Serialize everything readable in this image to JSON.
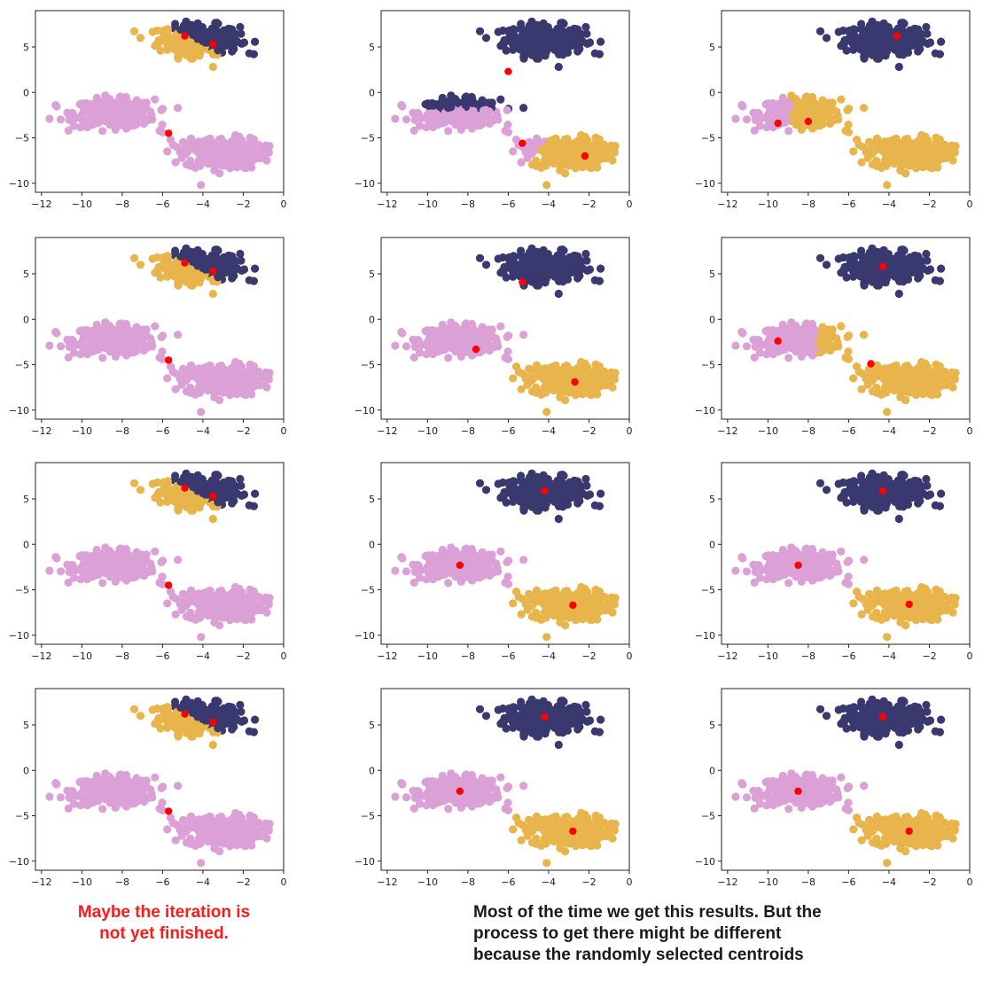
{
  "colors": {
    "navy": "#39386f",
    "pink": "#dba0d6",
    "gold": "#e8b44c",
    "centroid": "#ff0000",
    "caption_left": "#ff1a1a"
  },
  "axes": {
    "xticks": [
      -12,
      -10,
      -8,
      -6,
      -4,
      -2,
      0
    ],
    "yticks": [
      5,
      0,
      -5,
      -10
    ],
    "xlim": [
      -12.3,
      0
    ],
    "ylim": [
      -11,
      9
    ]
  },
  "chart_data": [
    {
      "type": "scatter",
      "column": 1,
      "row": 1,
      "assignment": "A",
      "centroids": [
        {
          "x": -4.9,
          "y": 6.2
        },
        {
          "x": -3.5,
          "y": 5.3
        },
        {
          "x": -5.7,
          "y": -4.5
        }
      ]
    },
    {
      "type": "scatter",
      "column": 2,
      "row": 1,
      "assignment": "B",
      "centroids": [
        {
          "x": -6.0,
          "y": 2.3
        },
        {
          "x": -5.3,
          "y": -5.6
        },
        {
          "x": -2.2,
          "y": -7.0
        }
      ]
    },
    {
      "type": "scatter",
      "column": 3,
      "row": 1,
      "assignment": "C",
      "centroids": [
        {
          "x": -3.6,
          "y": 6.2
        },
        {
          "x": -9.5,
          "y": -3.4
        },
        {
          "x": -8.0,
          "y": -3.2
        }
      ]
    },
    {
      "type": "scatter",
      "column": 1,
      "row": 2,
      "assignment": "A",
      "centroids": [
        {
          "x": -4.9,
          "y": 6.2
        },
        {
          "x": -3.5,
          "y": 5.3
        },
        {
          "x": -5.7,
          "y": -4.5
        }
      ]
    },
    {
      "type": "scatter",
      "column": 2,
      "row": 2,
      "assignment": "D",
      "centroids": [
        {
          "x": -5.3,
          "y": 4.1
        },
        {
          "x": -7.6,
          "y": -3.3
        },
        {
          "x": -2.7,
          "y": -6.9
        }
      ]
    },
    {
      "type": "scatter",
      "column": 3,
      "row": 2,
      "assignment": "E",
      "centroids": [
        {
          "x": -4.3,
          "y": 5.8
        },
        {
          "x": -9.5,
          "y": -2.4
        },
        {
          "x": -4.9,
          "y": -4.9
        }
      ]
    },
    {
      "type": "scatter",
      "column": 1,
      "row": 3,
      "assignment": "A",
      "centroids": [
        {
          "x": -4.9,
          "y": 6.2
        },
        {
          "x": -3.5,
          "y": 5.3
        },
        {
          "x": -5.7,
          "y": -4.5
        }
      ]
    },
    {
      "type": "scatter",
      "column": 2,
      "row": 3,
      "assignment": "F",
      "centroids": [
        {
          "x": -4.2,
          "y": 5.9
        },
        {
          "x": -8.4,
          "y": -2.3
        },
        {
          "x": -2.8,
          "y": -6.7
        }
      ]
    },
    {
      "type": "scatter",
      "column": 3,
      "row": 3,
      "assignment": "F",
      "centroids": [
        {
          "x": -4.3,
          "y": 5.9
        },
        {
          "x": -8.5,
          "y": -2.3
        },
        {
          "x": -3.0,
          "y": -6.6
        }
      ]
    },
    {
      "type": "scatter",
      "column": 1,
      "row": 4,
      "assignment": "A",
      "centroids": [
        {
          "x": -4.9,
          "y": 6.2
        },
        {
          "x": -3.5,
          "y": 5.3
        },
        {
          "x": -5.7,
          "y": -4.5
        }
      ]
    },
    {
      "type": "scatter",
      "column": 2,
      "row": 4,
      "assignment": "F",
      "centroids": [
        {
          "x": -4.2,
          "y": 5.9
        },
        {
          "x": -8.4,
          "y": -2.3
        },
        {
          "x": -2.8,
          "y": -6.7
        }
      ]
    },
    {
      "type": "scatter",
      "column": 3,
      "row": 4,
      "assignment": "F",
      "centroids": [
        {
          "x": -4.3,
          "y": 5.9
        },
        {
          "x": -8.5,
          "y": -2.3
        },
        {
          "x": -3.0,
          "y": -6.7
        }
      ]
    }
  ],
  "captions": {
    "left_line1": "Maybe the iteration is",
    "left_line2": "not yet finished.",
    "right_line1": "Most of the time we get this results. But the",
    "right_line2": "process to get there might be different",
    "right_line3": "because the randomly selected centroids"
  }
}
